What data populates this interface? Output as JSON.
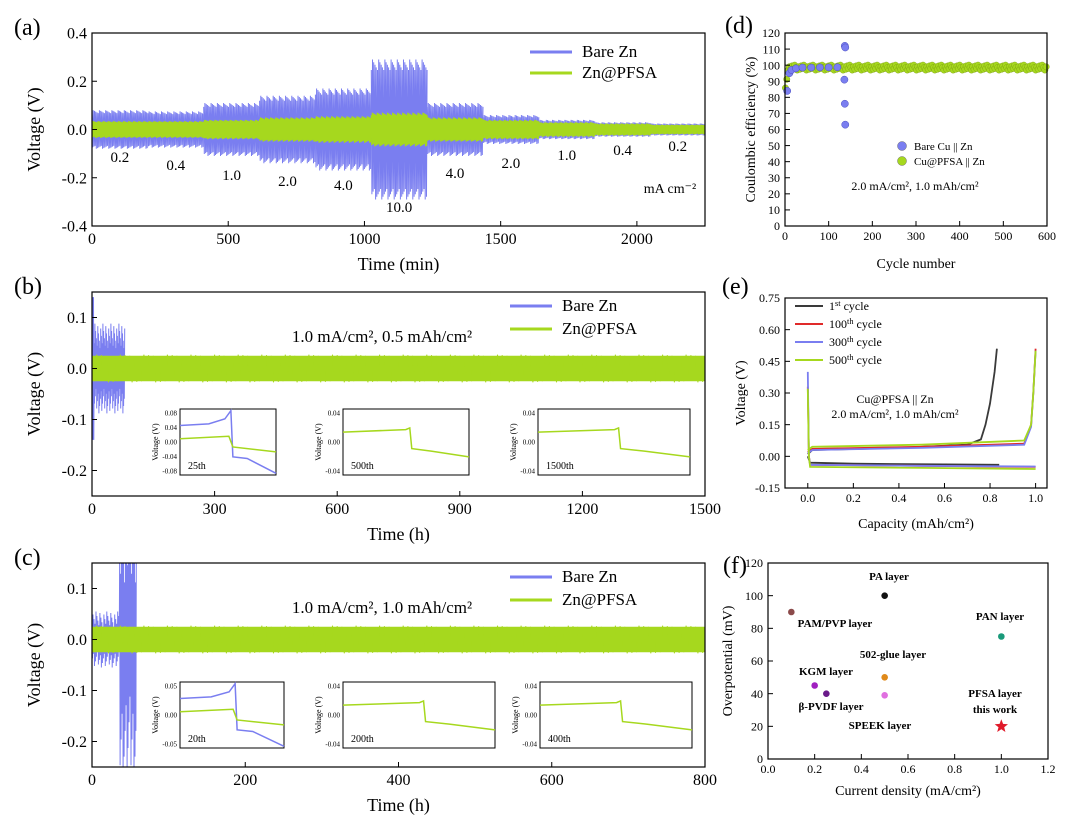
{
  "colors": {
    "bare": "#7a7ef0",
    "pfsa": "#a6d81e",
    "c1": "#3a3a3a",
    "c100": "#e02a2a",
    "c300": "#7a7ef0",
    "c500": "#a6d81e"
  },
  "chart_data": [
    {
      "id": "a",
      "panel_label": "(a)",
      "type": "line",
      "xlabel": "Time (min)",
      "ylabel": "Voltage (V)",
      "xlim": [
        0,
        2250
      ],
      "ylim": [
        -0.4,
        0.4
      ],
      "xticks": [
        0,
        500,
        1000,
        1500,
        2000
      ],
      "yticks": [
        -0.4,
        -0.2,
        0.0,
        0.2,
        0.4
      ],
      "ytick_labels": [
        "-0.4",
        "-0.2",
        "0.0",
        "0.2",
        "0.4"
      ],
      "legend": [
        "Bare Zn",
        "Zn@PFSA"
      ],
      "legend_position": "top-right",
      "unit_label": "mA cm⁻²",
      "rate_labels": [
        "0.2",
        "0.4",
        "1.0",
        "2.0",
        "4.0",
        "10.0",
        "4.0",
        "2.0",
        "1.0",
        "0.4",
        "0.2"
      ],
      "segments": [
        {
          "rate": "0.2",
          "t": [
            0,
            205
          ],
          "bare": 0.08,
          "pfsa": 0.035
        },
        {
          "rate": "0.4",
          "t": [
            205,
            410
          ],
          "bare": 0.075,
          "pfsa": 0.035
        },
        {
          "rate": "1.0",
          "t": [
            410,
            615
          ],
          "bare": 0.11,
          "pfsa": 0.04
        },
        {
          "rate": "2.0",
          "t": [
            615,
            820
          ],
          "bare": 0.14,
          "pfsa": 0.05
        },
        {
          "rate": "4.0",
          "t": [
            820,
            1025
          ],
          "bare": 0.17,
          "pfsa": 0.055
        },
        {
          "rate": "10.0",
          "t": [
            1025,
            1230
          ],
          "bare": 0.29,
          "pfsa": 0.07
        },
        {
          "rate": "4.0",
          "t": [
            1230,
            1435
          ],
          "bare": 0.11,
          "pfsa": 0.05
        },
        {
          "rate": "2.0",
          "t": [
            1435,
            1640
          ],
          "bare": 0.06,
          "pfsa": 0.04
        },
        {
          "rate": "1.0",
          "t": [
            1640,
            1845
          ],
          "bare": 0.04,
          "pfsa": 0.03
        },
        {
          "rate": "0.4",
          "t": [
            1845,
            2050
          ],
          "bare": 0.03,
          "pfsa": 0.025
        },
        {
          "rate": "0.2",
          "t": [
            2050,
            2250
          ],
          "bare": 0.025,
          "pfsa": 0.02
        }
      ]
    },
    {
      "id": "b",
      "panel_label": "(b)",
      "type": "line",
      "xlabel": "Time (h)",
      "ylabel": "Voltage (V)",
      "xlim": [
        0,
        1500
      ],
      "ylim": [
        -0.25,
        0.15
      ],
      "xticks": [
        0,
        300,
        600,
        900,
        1200,
        1500
      ],
      "yticks": [
        -0.2,
        -0.1,
        0.0,
        0.1
      ],
      "ytick_labels": [
        "-0.2",
        "-0.1",
        "0.0",
        "0.1"
      ],
      "legend": [
        "Bare Zn",
        "Zn@PFSA"
      ],
      "legend_position": "top-right",
      "condition": "1.0 mA/cm², 0.5 mAh/cm²",
      "bare_end": 80,
      "bare_amp": 0.08,
      "pfsa_amp": 0.025,
      "insets": [
        {
          "label": "25th",
          "ylabel": "Voltage (V)",
          "yticks": [
            "0.08",
            "0.04",
            "0.00",
            "-0.04",
            "-0.08"
          ],
          "show_bare": true
        },
        {
          "label": "500th",
          "ylabel": "Voltage (V)",
          "yticks": [
            "0.04",
            "0.00",
            "-0.04"
          ],
          "show_bare": false
        },
        {
          "label": "1500th",
          "ylabel": "Voltage (V)",
          "yticks": [
            "0.04",
            "0.00",
            "-0.04"
          ],
          "show_bare": false
        }
      ]
    },
    {
      "id": "c",
      "panel_label": "(c)",
      "type": "line",
      "xlabel": "Time (h)",
      "ylabel": "Voltage (V)",
      "xlim": [
        0,
        800
      ],
      "ylim": [
        -0.25,
        0.15
      ],
      "xticks": [
        0,
        200,
        400,
        600,
        800
      ],
      "yticks": [
        -0.2,
        -0.1,
        0.0,
        0.1
      ],
      "ytick_labels": [
        "-0.2",
        "-0.1",
        "0.0",
        "0.1"
      ],
      "legend": [
        "Bare Zn",
        "Zn@PFSA"
      ],
      "legend_position": "top-right",
      "condition": "1.0 mA/cm², 1.0 mAh/cm²",
      "bare_end": 58,
      "bare_amp": 0.05,
      "pfsa_amp": 0.025,
      "insets": [
        {
          "label": "20th",
          "ylabel": "Voltage (V)",
          "yticks": [
            "0.05",
            "0.00",
            "-0.05"
          ],
          "show_bare": true
        },
        {
          "label": "200th",
          "ylabel": "Voltage (V)",
          "yticks": [
            "0.04",
            "0.00",
            "-0.04"
          ],
          "show_bare": false
        },
        {
          "label": "400th",
          "ylabel": "Voltage (V)",
          "yticks": [
            "0.04",
            "0.00",
            "-0.04"
          ],
          "show_bare": false
        }
      ]
    },
    {
      "id": "d",
      "panel_label": "(d)",
      "type": "scatter",
      "xlabel": "Cycle number",
      "ylabel": "Coulombic efficiency (%)",
      "xlim": [
        0,
        600
      ],
      "ylim": [
        0,
        120
      ],
      "xticks": [
        0,
        100,
        200,
        300,
        400,
        500,
        600
      ],
      "yticks": [
        0,
        10,
        20,
        30,
        40,
        50,
        60,
        70,
        80,
        90,
        100,
        110,
        120
      ],
      "legend": [
        "Bare Cu || Zn",
        "Cu@PFSA || Zn"
      ],
      "legend_position": "center-right",
      "condition": "2.0 mA/cm², 1.0 mAh/cm²",
      "series": [
        {
          "name": "Bare Cu || Zn",
          "points": [
            [
              5,
              84
            ],
            [
              10,
              95
            ],
            [
              15,
              97
            ],
            [
              25,
              98
            ],
            [
              40,
              98.5
            ],
            [
              60,
              98.5
            ],
            [
              80,
              98.6
            ],
            [
              100,
              98.6
            ],
            [
              120,
              98.7
            ],
            [
              137,
              112
            ],
            [
              138,
              111
            ],
            [
              136,
              91
            ],
            [
              137,
              76
            ],
            [
              138,
              63
            ]
          ]
        },
        {
          "name": "Cu@PFSA || Zn",
          "x_range": [
            1,
            600
          ],
          "y_start": 84,
          "y_steady": 98.5,
          "scatter": 1.5
        }
      ]
    },
    {
      "id": "e",
      "panel_label": "(e)",
      "type": "line",
      "xlabel": "Capacity (mAh/cm²)",
      "ylabel": "Voltage (V)",
      "xlim": [
        -0.1,
        1.05
      ],
      "ylim": [
        -0.15,
        0.75
      ],
      "xticks": [
        0.0,
        0.2,
        0.4,
        0.6,
        0.8,
        1.0
      ],
      "yticks": [
        -0.15,
        0.0,
        0.15,
        0.3,
        0.45,
        0.6,
        0.75
      ],
      "ytick_labels": [
        "-0.15",
        "0.00",
        "0.15",
        "0.30",
        "0.45",
        "0.60",
        "0.75"
      ],
      "legend_position": "top-left",
      "annotation": [
        "Cu@PFSA || Zn",
        "2.0 mA/cm², 1.0 mAh/cm²"
      ],
      "series": [
        {
          "name": "1st cycle",
          "base": "1",
          "suffix": "st",
          "rest": " cycle",
          "discharge": [
            [
              0,
              0.0
            ],
            [
              0.01,
              -0.03
            ],
            [
              0.2,
              -0.035
            ],
            [
              0.6,
              -0.038
            ],
            [
              0.84,
              -0.04
            ]
          ],
          "charge": [
            [
              0,
              0.01
            ],
            [
              0.02,
              0.03
            ],
            [
              0.4,
              0.04
            ],
            [
              0.7,
              0.055
            ],
            [
              0.76,
              0.08
            ],
            [
              0.78,
              0.15
            ],
            [
              0.8,
              0.25
            ],
            [
              0.82,
              0.4
            ],
            [
              0.83,
              0.51
            ]
          ]
        },
        {
          "name": "100th cycle",
          "base": "100",
          "suffix": "th",
          "rest": " cycle",
          "discharge": [
            [
              0,
              0.33
            ],
            [
              0.005,
              0.0
            ],
            [
              0.01,
              -0.04
            ],
            [
              0.5,
              -0.045
            ],
            [
              1.0,
              -0.05
            ]
          ],
          "charge": [
            [
              0,
              0.02
            ],
            [
              0.02,
              0.035
            ],
            [
              0.5,
              0.045
            ],
            [
              0.95,
              0.06
            ],
            [
              0.98,
              0.15
            ],
            [
              0.99,
              0.3
            ],
            [
              1.0,
              0.51
            ]
          ]
        },
        {
          "name": "300th cycle",
          "base": "300",
          "suffix": "th",
          "rest": " cycle",
          "discharge": [
            [
              0,
              0.4
            ],
            [
              0.005,
              0.0
            ],
            [
              0.01,
              -0.04
            ],
            [
              0.5,
              -0.045
            ],
            [
              1.0,
              -0.048
            ]
          ],
          "charge": [
            [
              0,
              0.015
            ],
            [
              0.02,
              0.03
            ],
            [
              0.5,
              0.04
            ],
            [
              0.95,
              0.055
            ],
            [
              0.98,
              0.14
            ],
            [
              0.99,
              0.3
            ],
            [
              1.0,
              0.5
            ]
          ]
        },
        {
          "name": "500th cycle",
          "base": "500",
          "suffix": "th",
          "rest": " cycle",
          "discharge": [
            [
              0,
              0.32
            ],
            [
              0.005,
              0.0
            ],
            [
              0.01,
              -0.05
            ],
            [
              0.5,
              -0.055
            ],
            [
              1.0,
              -0.06
            ]
          ],
          "charge": [
            [
              0,
              0.03
            ],
            [
              0.02,
              0.045
            ],
            [
              0.5,
              0.055
            ],
            [
              0.95,
              0.075
            ],
            [
              0.98,
              0.15
            ],
            [
              0.99,
              0.3
            ],
            [
              1.0,
              0.5
            ]
          ]
        }
      ]
    },
    {
      "id": "f",
      "panel_label": "(f)",
      "type": "scatter",
      "xlabel": "Current density (mA/cm²)",
      "ylabel": "Overpotential (mV)",
      "xlim": [
        0.0,
        1.2
      ],
      "ylim": [
        0,
        120
      ],
      "xticks": [
        0.0,
        0.2,
        0.4,
        0.6,
        0.8,
        1.0,
        1.2
      ],
      "yticks": [
        0,
        20,
        40,
        60,
        80,
        100,
        120
      ],
      "points": [
        {
          "name": "PA layer",
          "x": 0.5,
          "y": 100,
          "color": "#111111",
          "marker": "circle"
        },
        {
          "name": "PAM/PVP layer",
          "x": 0.1,
          "y": 90,
          "color": "#8b4a4a",
          "marker": "circle"
        },
        {
          "name": "PAN layer",
          "x": 1.0,
          "y": 75,
          "color": "#1a9a7a",
          "marker": "circle"
        },
        {
          "name": "502-glue layer",
          "x": 0.5,
          "y": 50,
          "color": "#e08a1a",
          "marker": "circle"
        },
        {
          "name": "KGM layer",
          "x": 0.2,
          "y": 45,
          "color": "#a020c0",
          "marker": "circle"
        },
        {
          "name": "β-PVDF layer",
          "x": 0.25,
          "y": 40,
          "color": "#6a1a8a",
          "marker": "circle"
        },
        {
          "name": "SPEEK layer",
          "x": 0.5,
          "y": 39,
          "color": "#e070e0",
          "marker": "circle"
        },
        {
          "name": "PFSA layer this work",
          "x": 1.0,
          "y": 20,
          "color": "#e01a2a",
          "marker": "star"
        }
      ],
      "labels": [
        {
          "text": "PA layer",
          "color": "#111111"
        },
        {
          "text": "PAM/PVP layer",
          "color": "#8b4a4a"
        },
        {
          "text": "PAN layer",
          "color": "#1a9a7a"
        },
        {
          "text": "502-glue layer",
          "color": "#e08a1a"
        },
        {
          "text": "KGM layer",
          "color": "#a020c0"
        },
        {
          "text": "β-PVDF layer",
          "color": "#6a1a8a"
        },
        {
          "text": "SPEEK layer",
          "color": "#e070e0"
        },
        {
          "text": "PFSA layer",
          "color": "#e01a2a"
        },
        {
          "text": "this work",
          "color": "#e01a2a"
        }
      ]
    }
  ]
}
